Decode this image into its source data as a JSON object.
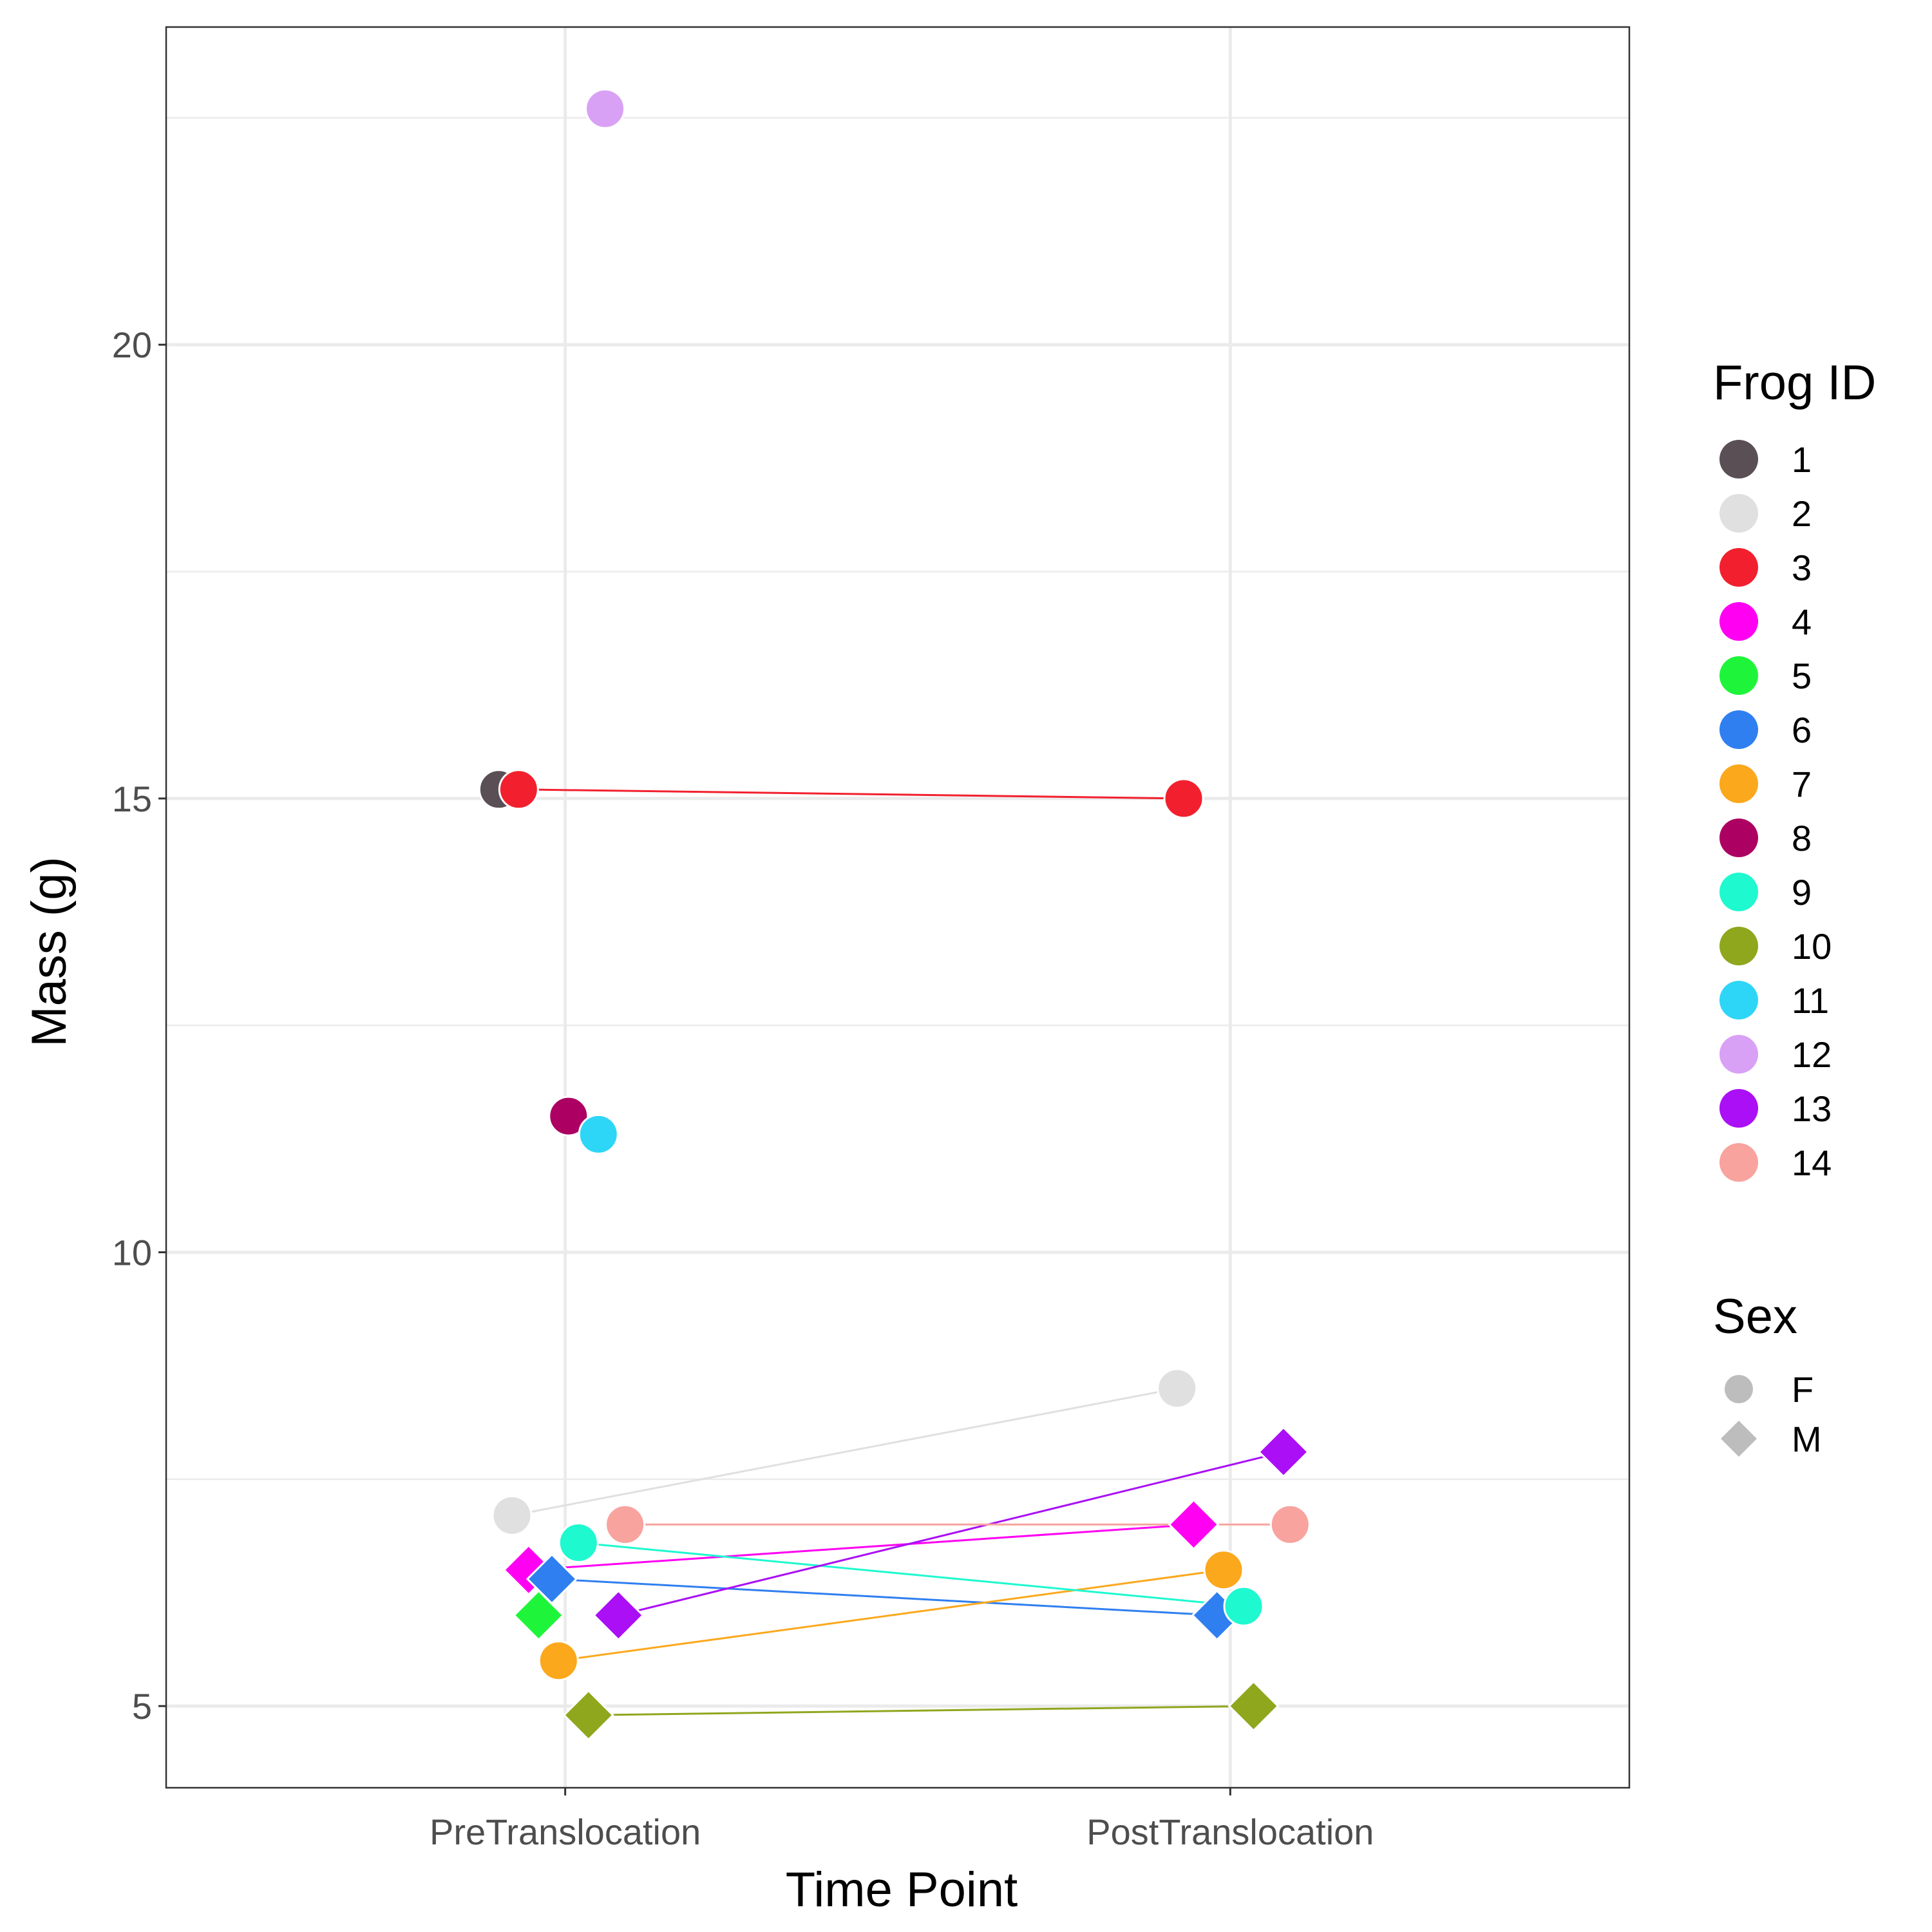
{
  "chart_data": {
    "type": "scatter",
    "xlabel": "Time Point",
    "ylabel": "Mass (g)",
    "categories": [
      "PreTranslocation",
      "PostTranslocation"
    ],
    "ylim": [
      4.1,
      23.5
    ],
    "yticks": [
      5,
      10,
      15,
      20
    ],
    "grid": true,
    "legend_position": "right",
    "color_legend_title": "Frog ID",
    "shape_legend_title": "Sex",
    "sex_legend": [
      {
        "label": "F",
        "shape": "circle"
      },
      {
        "label": "M",
        "shape": "diamond"
      }
    ],
    "series": [
      {
        "name": "1",
        "color": "#5a4f55",
        "sex": "F",
        "values": [
          15.1,
          null
        ]
      },
      {
        "name": "2",
        "color": "#e0e0e0",
        "sex": "F",
        "values": [
          7.1,
          8.5
        ]
      },
      {
        "name": "3",
        "color": "#f2202e",
        "sex": "F",
        "values": [
          15.1,
          15.0
        ]
      },
      {
        "name": "4",
        "color": "#ff00f2",
        "sex": "M",
        "values": [
          6.5,
          7.0
        ]
      },
      {
        "name": "5",
        "color": "#1ef53a",
        "sex": "M",
        "values": [
          6.0,
          null
        ]
      },
      {
        "name": "6",
        "color": "#2f7ff0",
        "sex": "M",
        "values": [
          6.4,
          6.0
        ]
      },
      {
        "name": "7",
        "color": "#fba81d",
        "sex": "F",
        "values": [
          5.5,
          6.5
        ]
      },
      {
        "name": "8",
        "color": "#ac0062",
        "sex": "F",
        "values": [
          11.5,
          null
        ]
      },
      {
        "name": "9",
        "color": "#1ef9cf",
        "sex": "F",
        "values": [
          6.8,
          6.1
        ]
      },
      {
        "name": "10",
        "color": "#8ea71d",
        "sex": "M",
        "values": [
          4.9,
          5.0
        ]
      },
      {
        "name": "11",
        "color": "#2dd6f6",
        "sex": "F",
        "values": [
          11.3,
          null
        ]
      },
      {
        "name": "12",
        "color": "#d9a1f5",
        "sex": "F",
        "values": [
          22.6,
          null
        ]
      },
      {
        "name": "13",
        "color": "#aa0ff5",
        "sex": "M",
        "values": [
          6.0,
          7.8
        ]
      },
      {
        "name": "14",
        "color": "#f8a39e",
        "sex": "F",
        "values": [
          7.0,
          7.0
        ]
      }
    ],
    "jitter": [
      [
        -0.1,
        null
      ],
      [
        -0.08,
        -0.08
      ],
      [
        -0.07,
        -0.07
      ],
      [
        -0.055,
        -0.055
      ],
      [
        -0.04,
        null
      ],
      [
        -0.02,
        -0.02
      ],
      [
        -0.01,
        -0.01
      ],
      [
        0.005,
        null
      ],
      [
        0.02,
        0.02
      ],
      [
        0.035,
        0.035
      ],
      [
        0.05,
        null
      ],
      [
        0.06,
        null
      ],
      [
        0.08,
        0.08
      ],
      [
        0.09,
        0.09
      ]
    ]
  }
}
